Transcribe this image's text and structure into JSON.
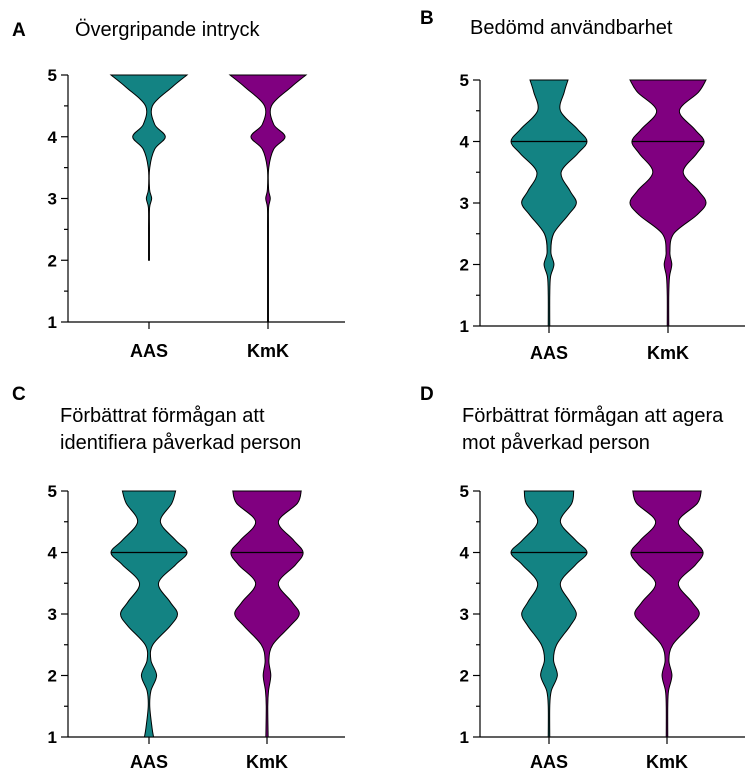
{
  "colors": {
    "AAS": "#138383",
    "KmK": "#800080"
  },
  "chart_data": [
    {
      "type": "violin",
      "letter": "A",
      "title": [
        "Övergripande intryck"
      ],
      "categories": [
        "AAS",
        "KmK"
      ],
      "ylim": [
        1,
        5
      ],
      "yticks": [
        1,
        2,
        3,
        4,
        5
      ],
      "series": [
        {
          "category": "AAS",
          "min": 2,
          "max": 5,
          "median": 5,
          "density": [
            [
              2,
              0.01
            ],
            [
              2.5,
              0.01
            ],
            [
              2.85,
              0.015
            ],
            [
              3,
              0.07
            ],
            [
              3.15,
              0.015
            ],
            [
              3.5,
              0.02
            ],
            [
              3.8,
              0.15
            ],
            [
              4,
              0.43
            ],
            [
              4.2,
              0.15
            ],
            [
              4.5,
              0.09
            ],
            [
              4.8,
              0.6
            ],
            [
              5,
              1.0
            ]
          ]
        },
        {
          "category": "KmK",
          "min": 1,
          "max": 5,
          "median": 5,
          "density": [
            [
              1,
              0.01
            ],
            [
              2.5,
              0.01
            ],
            [
              2.85,
              0.015
            ],
            [
              3,
              0.06
            ],
            [
              3.15,
              0.015
            ],
            [
              3.5,
              0.02
            ],
            [
              3.8,
              0.15
            ],
            [
              4,
              0.45
            ],
            [
              4.2,
              0.15
            ],
            [
              4.5,
              0.09
            ],
            [
              4.8,
              0.6
            ],
            [
              5,
              1.0
            ]
          ]
        }
      ]
    },
    {
      "type": "violin",
      "letter": "B",
      "title": [
        "Bedömd användbarhet"
      ],
      "categories": [
        "AAS",
        "KmK"
      ],
      "ylim": [
        1,
        5
      ],
      "yticks": [
        1,
        2,
        3,
        4,
        5
      ],
      "series": [
        {
          "category": "AAS",
          "min": 1,
          "max": 5,
          "median": 4,
          "density": [
            [
              1,
              0.02
            ],
            [
              1.5,
              0.02
            ],
            [
              1.8,
              0.04
            ],
            [
              2,
              0.13
            ],
            [
              2.2,
              0.05
            ],
            [
              2.5,
              0.12
            ],
            [
              2.8,
              0.5
            ],
            [
              3,
              0.72
            ],
            [
              3.2,
              0.55
            ],
            [
              3.5,
              0.32
            ],
            [
              3.8,
              0.75
            ],
            [
              4,
              1.0
            ],
            [
              4.2,
              0.75
            ],
            [
              4.5,
              0.3
            ],
            [
              4.8,
              0.4
            ],
            [
              5,
              0.5
            ]
          ]
        },
        {
          "category": "KmK",
          "min": 1,
          "max": 5,
          "median": 4,
          "density": [
            [
              1,
              0.02
            ],
            [
              1.5,
              0.02
            ],
            [
              1.8,
              0.04
            ],
            [
              2,
              0.1
            ],
            [
              2.2,
              0.05
            ],
            [
              2.5,
              0.15
            ],
            [
              2.8,
              0.75
            ],
            [
              3,
              1.0
            ],
            [
              3.2,
              0.8
            ],
            [
              3.5,
              0.4
            ],
            [
              3.8,
              0.75
            ],
            [
              4,
              0.95
            ],
            [
              4.2,
              0.7
            ],
            [
              4.5,
              0.3
            ],
            [
              4.8,
              0.8
            ],
            [
              5,
              1.0
            ]
          ]
        }
      ]
    },
    {
      "type": "violin",
      "letter": "C",
      "title": [
        "Förbättrat förmågan att",
        "identifiera påverkad person"
      ],
      "categories": [
        "AAS",
        "KmK"
      ],
      "ylim": [
        1,
        5
      ],
      "yticks": [
        1,
        2,
        3,
        4,
        5
      ],
      "series": [
        {
          "category": "AAS",
          "min": 1,
          "max": 5,
          "median": 4,
          "density": [
            [
              1,
              0.12
            ],
            [
              1.15,
              0.08
            ],
            [
              1.5,
              0.02
            ],
            [
              1.75,
              0.05
            ],
            [
              2,
              0.2
            ],
            [
              2.25,
              0.05
            ],
            [
              2.5,
              0.1
            ],
            [
              2.8,
              0.55
            ],
            [
              3,
              0.75
            ],
            [
              3.2,
              0.55
            ],
            [
              3.5,
              0.25
            ],
            [
              3.8,
              0.7
            ],
            [
              4,
              1.0
            ],
            [
              4.2,
              0.7
            ],
            [
              4.5,
              0.3
            ],
            [
              4.8,
              0.6
            ],
            [
              5,
              0.7
            ]
          ]
        },
        {
          "category": "KmK",
          "min": 1,
          "max": 5,
          "median": 4,
          "density": [
            [
              1,
              0.03
            ],
            [
              1.5,
              0.02
            ],
            [
              1.75,
              0.04
            ],
            [
              2,
              0.1
            ],
            [
              2.25,
              0.05
            ],
            [
              2.5,
              0.15
            ],
            [
              2.8,
              0.6
            ],
            [
              3,
              0.85
            ],
            [
              3.2,
              0.65
            ],
            [
              3.5,
              0.3
            ],
            [
              3.8,
              0.75
            ],
            [
              4,
              0.95
            ],
            [
              4.2,
              0.7
            ],
            [
              4.5,
              0.3
            ],
            [
              4.8,
              0.8
            ],
            [
              5,
              0.9
            ]
          ]
        }
      ]
    },
    {
      "type": "violin",
      "letter": "D",
      "title": [
        "Förbättrat förmågan att agera",
        "mot påverkad person"
      ],
      "categories": [
        "AAS",
        "KmK"
      ],
      "ylim": [
        1,
        5
      ],
      "yticks": [
        1,
        2,
        3,
        4,
        5
      ],
      "series": [
        {
          "category": "AAS",
          "min": 1,
          "max": 5,
          "median": 4,
          "density": [
            [
              1,
              0.02
            ],
            [
              1.5,
              0.02
            ],
            [
              1.75,
              0.06
            ],
            [
              2,
              0.22
            ],
            [
              2.25,
              0.12
            ],
            [
              2.5,
              0.2
            ],
            [
              2.8,
              0.55
            ],
            [
              3,
              0.72
            ],
            [
              3.2,
              0.55
            ],
            [
              3.5,
              0.3
            ],
            [
              3.8,
              0.7
            ],
            [
              4,
              1.0
            ],
            [
              4.2,
              0.7
            ],
            [
              4.5,
              0.3
            ],
            [
              4.8,
              0.6
            ],
            [
              5,
              0.65
            ]
          ]
        },
        {
          "category": "KmK",
          "min": 1,
          "max": 5,
          "median": 4,
          "density": [
            [
              1,
              0.02
            ],
            [
              1.5,
              0.02
            ],
            [
              1.75,
              0.04
            ],
            [
              2,
              0.13
            ],
            [
              2.25,
              0.05
            ],
            [
              2.5,
              0.15
            ],
            [
              2.8,
              0.6
            ],
            [
              3,
              0.85
            ],
            [
              3.2,
              0.65
            ],
            [
              3.5,
              0.3
            ],
            [
              3.8,
              0.75
            ],
            [
              4,
              0.95
            ],
            [
              4.2,
              0.7
            ],
            [
              4.5,
              0.3
            ],
            [
              4.8,
              0.8
            ],
            [
              5,
              0.9
            ]
          ]
        }
      ]
    }
  ]
}
